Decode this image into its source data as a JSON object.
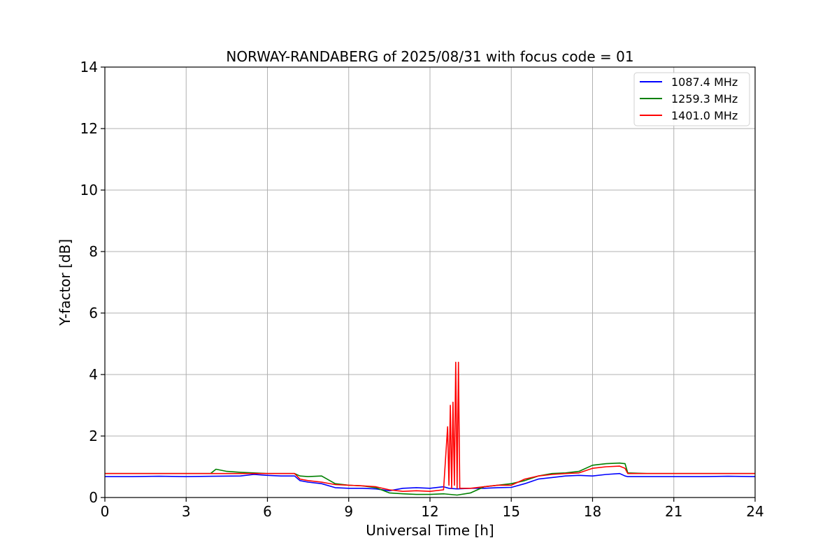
{
  "chart_data": {
    "type": "line",
    "title": "NORWAY-RANDABERG of 2025/08/31 with focus code = 01",
    "xlabel": "Universal Time [h]",
    "ylabel": "Y-factor [dB]",
    "xlim": [
      0,
      24
    ],
    "ylim": [
      0,
      14
    ],
    "x_ticks": [
      0,
      3,
      6,
      9,
      12,
      15,
      18,
      21,
      24
    ],
    "y_ticks": [
      0,
      2,
      4,
      6,
      8,
      10,
      12,
      14
    ],
    "x_tick_labels": [
      "0",
      "3",
      "6",
      "9",
      "12",
      "15",
      "18",
      "21",
      "24"
    ],
    "y_tick_labels": [
      "0",
      "2",
      "4",
      "6",
      "8",
      "10",
      "12",
      "14"
    ],
    "grid": true,
    "legend_position": "top-right",
    "series": [
      {
        "name": "1087.4 MHz",
        "color": "#0000ff",
        "x": [
          0,
          1,
          2,
          3,
          4,
          5,
          5.5,
          6,
          6.5,
          7,
          7.2,
          7.5,
          8,
          8.5,
          9,
          9.5,
          10,
          10.5,
          11,
          11.5,
          12,
          12.5,
          12.7,
          13,
          13.5,
          14,
          14.5,
          15,
          15.5,
          16,
          16.5,
          17,
          17.5,
          18,
          18.5,
          19,
          19.2,
          19.3,
          20,
          21,
          22,
          23,
          24
        ],
        "y": [
          0.68,
          0.68,
          0.69,
          0.68,
          0.69,
          0.7,
          0.75,
          0.72,
          0.7,
          0.7,
          0.55,
          0.5,
          0.45,
          0.32,
          0.3,
          0.3,
          0.28,
          0.22,
          0.3,
          0.32,
          0.3,
          0.35,
          0.3,
          0.28,
          0.3,
          0.3,
          0.32,
          0.33,
          0.45,
          0.6,
          0.65,
          0.7,
          0.72,
          0.7,
          0.75,
          0.78,
          0.7,
          0.68,
          0.68,
          0.68,
          0.68,
          0.69,
          0.68
        ]
      },
      {
        "name": "1259.3 MHz",
        "color": "#008000",
        "x": [
          0,
          1,
          2,
          3,
          3.9,
          4.1,
          4.5,
          5,
          5.5,
          6,
          6.5,
          7,
          7.2,
          7.5,
          8,
          8.5,
          9,
          9.5,
          10,
          10.5,
          11,
          11.5,
          12,
          12.5,
          13,
          13.5,
          14,
          14.5,
          15,
          15.5,
          16,
          16.5,
          17,
          17.5,
          18,
          18.5,
          19,
          19.2,
          19.3,
          20,
          21,
          22,
          23,
          24
        ],
        "y": [
          0.78,
          0.78,
          0.78,
          0.78,
          0.78,
          0.92,
          0.85,
          0.82,
          0.8,
          0.78,
          0.78,
          0.78,
          0.7,
          0.68,
          0.7,
          0.45,
          0.4,
          0.38,
          0.32,
          0.15,
          0.12,
          0.1,
          0.1,
          0.12,
          0.08,
          0.15,
          0.35,
          0.4,
          0.45,
          0.55,
          0.7,
          0.78,
          0.8,
          0.85,
          1.05,
          1.1,
          1.12,
          1.1,
          0.8,
          0.78,
          0.78,
          0.78,
          0.78,
          0.78
        ]
      },
      {
        "name": "1401.0 MHz",
        "color": "#ff0000",
        "x": [
          0,
          1,
          2,
          3,
          4,
          5,
          6,
          6.5,
          7,
          7.2,
          7.5,
          8,
          8.5,
          9,
          9.5,
          10,
          10.5,
          11,
          11.5,
          12,
          12.5,
          12.65,
          12.7,
          12.75,
          12.8,
          12.85,
          12.9,
          12.95,
          13.0,
          13.05,
          13.1,
          13.5,
          14,
          14.5,
          15,
          15.5,
          16,
          16.5,
          17,
          17.5,
          18,
          18.5,
          19,
          19.2,
          19.3,
          20,
          21,
          22,
          23,
          24
        ],
        "y": [
          0.78,
          0.78,
          0.78,
          0.78,
          0.78,
          0.78,
          0.78,
          0.78,
          0.78,
          0.6,
          0.55,
          0.5,
          0.42,
          0.4,
          0.38,
          0.35,
          0.25,
          0.2,
          0.22,
          0.2,
          0.25,
          2.3,
          0.4,
          3.0,
          0.3,
          3.1,
          0.4,
          4.4,
          0.3,
          4.4,
          0.3,
          0.3,
          0.35,
          0.4,
          0.4,
          0.6,
          0.7,
          0.75,
          0.78,
          0.8,
          0.95,
          1.0,
          1.02,
          0.95,
          0.78,
          0.78,
          0.78,
          0.78,
          0.78,
          0.78
        ]
      }
    ]
  }
}
